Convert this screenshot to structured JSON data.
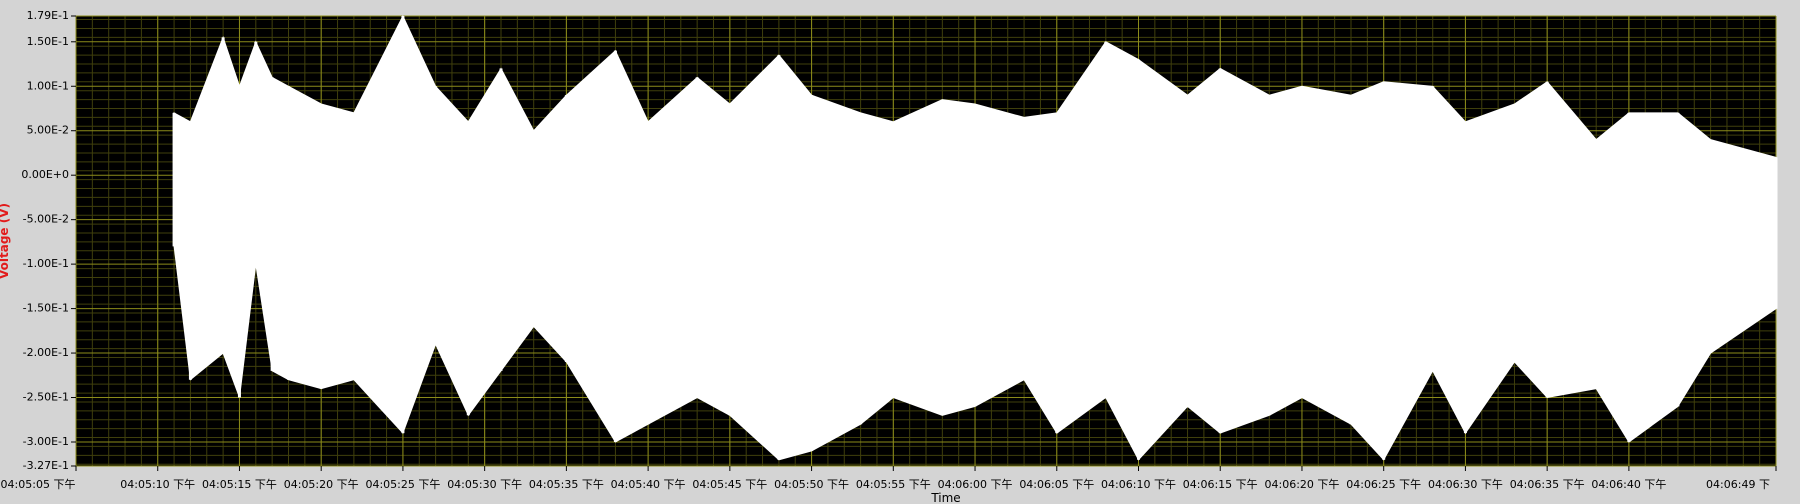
{
  "chart_data": {
    "type": "line",
    "ylabel": "Voltage (V)",
    "xlabel": "Time",
    "grid": true,
    "colors": {
      "background": "#000000",
      "grid": "#8c8c1a",
      "series": "#ffffff",
      "ylabel": "#e21b1b"
    },
    "ylim": [
      -0.327,
      0.179
    ],
    "y_ticks": [
      {
        "value": 0.179,
        "label": "1.79E-1"
      },
      {
        "value": 0.15,
        "label": "1.50E-1"
      },
      {
        "value": 0.1,
        "label": "1.00E-1"
      },
      {
        "value": 0.05,
        "label": "5.00E-2"
      },
      {
        "value": 0.0,
        "label": "0.00E+0"
      },
      {
        "value": -0.05,
        "label": "-5.00E-2"
      },
      {
        "value": -0.1,
        "label": "-1.00E-1"
      },
      {
        "value": -0.15,
        "label": "-1.50E-1"
      },
      {
        "value": -0.2,
        "label": "-2.00E-1"
      },
      {
        "value": -0.25,
        "label": "-2.50E-1"
      },
      {
        "value": -0.3,
        "label": "-3.00E-1"
      },
      {
        "value": -0.327,
        "label": "-3.27E-1"
      }
    ],
    "xlim": [
      "04:05:05",
      "04:06:49"
    ],
    "x_ticks": [
      {
        "value": "04:05:05",
        "label": "04:05:05 下午"
      },
      {
        "value": "04:05:10",
        "label": "04:05:10 下午"
      },
      {
        "value": "04:05:15",
        "label": "04:05:15 下午"
      },
      {
        "value": "04:05:20",
        "label": "04:05:20 下午"
      },
      {
        "value": "04:05:25",
        "label": "04:05:25 下午"
      },
      {
        "value": "04:05:30",
        "label": "04:05:30 下午"
      },
      {
        "value": "04:05:35",
        "label": "04:05:35 下午"
      },
      {
        "value": "04:05:40",
        "label": "04:05:40 下午"
      },
      {
        "value": "04:05:45",
        "label": "04:05:45 下午"
      },
      {
        "value": "04:05:50",
        "label": "04:05:50 下午"
      },
      {
        "value": "04:05:55",
        "label": "04:05:55 下午"
      },
      {
        "value": "04:06:00",
        "label": "04:06:00 下午"
      },
      {
        "value": "04:06:05",
        "label": "04:06:05 下午"
      },
      {
        "value": "04:06:10",
        "label": "04:06:10 下午"
      },
      {
        "value": "04:06:15",
        "label": "04:06:15 下午"
      },
      {
        "value": "04:06:20",
        "label": "04:06:20 下午"
      },
      {
        "value": "04:06:25",
        "label": "04:06:25 下午"
      },
      {
        "value": "04:06:30",
        "label": "04:06:30 下午"
      },
      {
        "value": "04:06:35",
        "label": "04:06:35 下午"
      },
      {
        "value": "04:06:40",
        "label": "04:06:40 下午"
      },
      {
        "value": "04:06:49",
        "label": "04:06:49 下"
      }
    ],
    "series": [
      {
        "x": [
          "04:05:11",
          "04:05:12",
          "04:05:14",
          "04:05:15",
          "04:05:16",
          "04:05:17",
          "04:05:18",
          "04:05:20",
          "04:05:22",
          "04:05:25",
          "04:05:27",
          "04:05:29",
          "04:05:31",
          "04:05:33",
          "04:05:35",
          "04:05:38",
          "04:05:40",
          "04:05:43",
          "04:05:45",
          "04:05:48",
          "04:05:50",
          "04:05:53",
          "04:05:55",
          "04:05:58",
          "04:06:00",
          "04:06:03",
          "04:06:05",
          "04:06:08",
          "04:06:10",
          "04:06:13",
          "04:06:15",
          "04:06:18",
          "04:06:20",
          "04:06:23",
          "04:06:25",
          "04:06:28",
          "04:06:30",
          "04:06:33",
          "04:06:35",
          "04:06:38",
          "04:06:40",
          "04:06:43",
          "04:06:45",
          "04:06:49"
        ],
        "high": [
          0.07,
          0.06,
          0.155,
          0.1,
          0.15,
          0.11,
          0.1,
          0.08,
          0.07,
          0.179,
          0.1,
          0.06,
          0.12,
          0.05,
          0.09,
          0.14,
          0.06,
          0.11,
          0.08,
          0.135,
          0.09,
          0.07,
          0.06,
          0.085,
          0.08,
          0.065,
          0.07,
          0.15,
          0.13,
          0.09,
          0.12,
          0.09,
          0.1,
          0.09,
          0.105,
          0.1,
          0.06,
          0.08,
          0.105,
          0.04,
          0.07,
          0.07,
          0.04,
          0.02
        ],
        "low": [
          -0.08,
          -0.23,
          -0.2,
          -0.25,
          -0.1,
          -0.22,
          -0.23,
          -0.24,
          -0.23,
          -0.29,
          -0.19,
          -0.27,
          -0.22,
          -0.17,
          -0.21,
          -0.3,
          -0.28,
          -0.25,
          -0.27,
          -0.32,
          -0.31,
          -0.28,
          -0.25,
          -0.27,
          -0.26,
          -0.23,
          -0.29,
          -0.25,
          -0.32,
          -0.26,
          -0.29,
          -0.27,
          -0.25,
          -0.28,
          -0.32,
          -0.22,
          -0.29,
          -0.21,
          -0.25,
          -0.24,
          -0.3,
          -0.26,
          -0.2,
          -0.15
        ]
      }
    ]
  }
}
